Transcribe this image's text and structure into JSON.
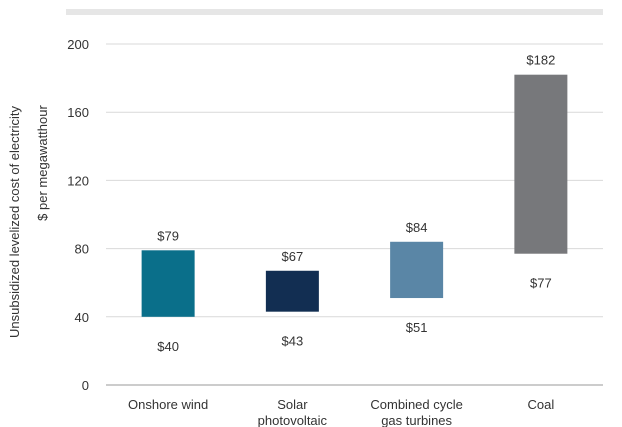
{
  "chart_data": {
    "type": "bar",
    "subtype": "floating-range",
    "categories": [
      [
        "Onshore wind"
      ],
      [
        "Solar",
        "photovoltaic"
      ],
      [
        "Combined cycle",
        "gas turbines"
      ],
      [
        "Coal"
      ]
    ],
    "series": [
      {
        "low": [
          40,
          43,
          51,
          77
        ],
        "high": [
          79,
          67,
          84,
          182
        ],
        "low_labels": [
          "$40",
          "$43",
          "$51",
          "$77"
        ],
        "high_labels": [
          "$79",
          "$67",
          "$84",
          "$182"
        ]
      }
    ],
    "colors": [
      "#0a6f8a",
      "#122e52",
      "#5a86a6",
      "#77787b"
    ],
    "ylabel": "Unsubsidized levelized cost of electricity",
    "ylabel_units": "$ per megawatthour",
    "ylim": [
      0,
      200
    ],
    "yticks": [
      "0",
      "40",
      "80",
      "120",
      "160",
      "200"
    ],
    "grid": true,
    "gridline_color": "#d9d9d9",
    "top_band_color": "#e6e6e6"
  }
}
